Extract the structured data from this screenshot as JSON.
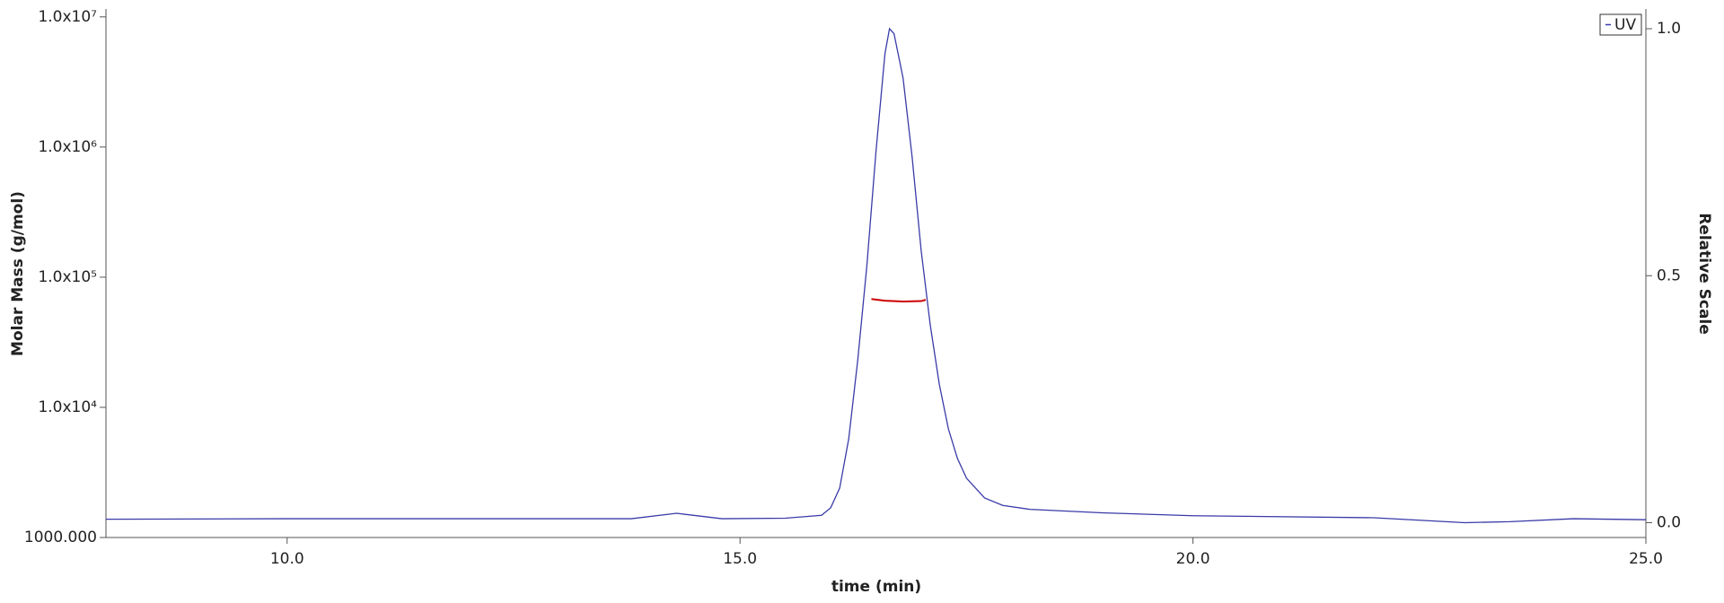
{
  "chart_data": {
    "type": "line",
    "xlabel": "time (min)",
    "ylabel": "Molar Mass (g/mol)",
    "y2label": "Relative Scale",
    "xlim": [
      8,
      25
    ],
    "xticks": [
      {
        "value": 10,
        "label": "10.0"
      },
      {
        "value": 15,
        "label": "15.0"
      },
      {
        "value": 20,
        "label": "20.0"
      },
      {
        "value": 25,
        "label": "25.0"
      }
    ],
    "ylim": [
      1000,
      11500000
    ],
    "ylog": true,
    "yticks": [
      {
        "value": 1000,
        "label": "1000.000"
      },
      {
        "value": 10000,
        "label": "1.0x10⁴"
      },
      {
        "value": 100000,
        "label": "1.0x10⁵"
      },
      {
        "value": 1000000,
        "label": "1.0x10⁶"
      },
      {
        "value": 10000000,
        "label": "1.0x10⁷"
      }
    ],
    "y2lim": [
      -0.03,
      1.04
    ],
    "y2ticks": [
      {
        "value": 0,
        "label": "0.0"
      },
      {
        "value": 0.5,
        "label": "0.5"
      },
      {
        "value": 1,
        "label": "1.0"
      }
    ],
    "legend": "upper right",
    "series": [
      {
        "name": "UV",
        "color": "#3a3aa8",
        "axis": "y2",
        "x": [
          8,
          10,
          13.8,
          14.3,
          14.8,
          15.5,
          15.9,
          16.0,
          16.1,
          16.2,
          16.3,
          16.4,
          16.5,
          16.6,
          16.65,
          16.7,
          16.8,
          16.9,
          17.0,
          17.1,
          17.2,
          17.3,
          17.4,
          17.5,
          17.7,
          17.9,
          18.2,
          19,
          20,
          22,
          23,
          23.5,
          24.2,
          25
        ],
        "values": [
          0.007,
          0.008,
          0.008,
          0.019,
          0.008,
          0.009,
          0.015,
          0.03,
          0.07,
          0.17,
          0.33,
          0.52,
          0.75,
          0.95,
          1.0,
          0.99,
          0.9,
          0.74,
          0.55,
          0.4,
          0.28,
          0.19,
          0.13,
          0.09,
          0.05,
          0.035,
          0.027,
          0.02,
          0.014,
          0.01,
          0.0,
          0.002,
          0.008,
          0.006
        ]
      },
      {
        "color": "#cc0000",
        "x": [
          16.45,
          16.6,
          16.8,
          17.0,
          17.05
        ],
        "values": [
          68000,
          66000,
          65000,
          65500,
          67000
        ]
      }
    ]
  }
}
